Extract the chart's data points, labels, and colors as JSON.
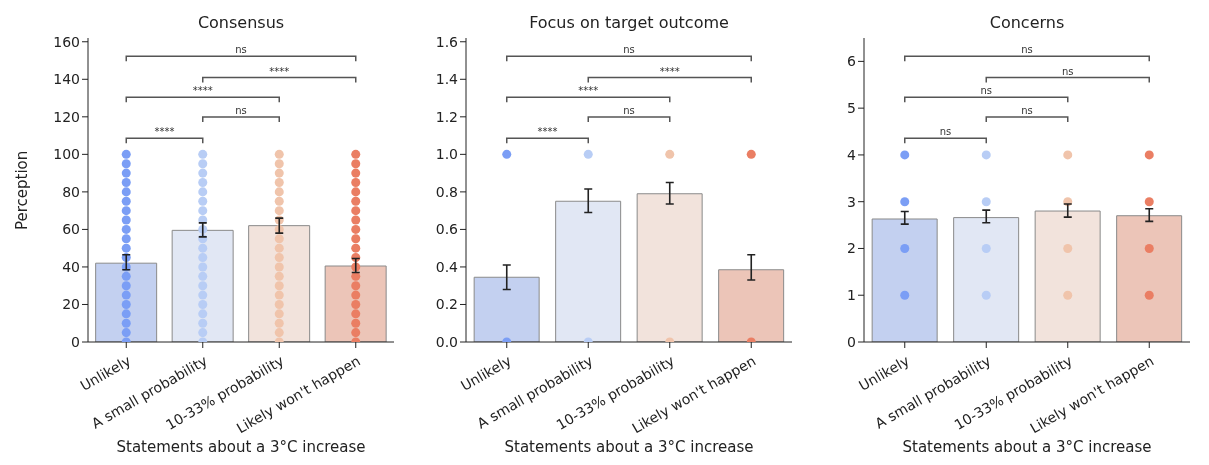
{
  "chart_data": [
    {
      "type": "bar",
      "title": "Consensus",
      "xlabel": "Statements about a 3°C increase",
      "ylabel": "Perception",
      "categories": [
        "Unlikely",
        "A small probability",
        "10-33% probability",
        "Likely won't happen"
      ],
      "ylim": [
        0,
        162
      ],
      "yticks": [
        0,
        20,
        40,
        60,
        80,
        100,
        120,
        140,
        160
      ],
      "grid": false,
      "legend": false,
      "series": [
        {
          "type": "bar",
          "values": [
            42,
            59.5,
            62,
            40.5
          ],
          "colors": [
            "#c3d0f0",
            "#e1e7f4",
            "#f2e3dc",
            "#ecc5b8"
          ],
          "errors": [
            [
              38.5,
              46.5
            ],
            [
              56,
              63.5
            ],
            [
              58,
              66
            ],
            [
              37,
              44.5
            ]
          ]
        },
        {
          "type": "scatter",
          "x": [
            "Unlikely",
            "Unlikely",
            "Unlikely",
            "Unlikely",
            "Unlikely",
            "Unlikely",
            "Unlikely",
            "Unlikely",
            "Unlikely",
            "Unlikely",
            "Unlikely",
            "Unlikely",
            "Unlikely",
            "Unlikely",
            "Unlikely",
            "Unlikely",
            "Unlikely",
            "Unlikely",
            "Unlikely",
            "Unlikely",
            "Unlikely",
            "A small probability",
            "A small probability",
            "A small probability",
            "A small probability",
            "A small probability",
            "A small probability",
            "A small probability",
            "A small probability",
            "A small probability",
            "A small probability",
            "A small probability",
            "A small probability",
            "A small probability",
            "A small probability",
            "A small probability",
            "A small probability",
            "A small probability",
            "A small probability",
            "A small probability",
            "A small probability",
            "A small probability",
            "10-33% probability",
            "10-33% probability",
            "10-33% probability",
            "10-33% probability",
            "10-33% probability",
            "10-33% probability",
            "10-33% probability",
            "10-33% probability",
            "10-33% probability",
            "10-33% probability",
            "10-33% probability",
            "10-33% probability",
            "10-33% probability",
            "10-33% probability",
            "10-33% probability",
            "10-33% probability",
            "10-33% probability",
            "10-33% probability",
            "10-33% probability",
            "10-33% probability",
            "10-33% probability",
            "Likely won't happen",
            "Likely won't happen",
            "Likely won't happen",
            "Likely won't happen",
            "Likely won't happen",
            "Likely won't happen",
            "Likely won't happen",
            "Likely won't happen",
            "Likely won't happen",
            "Likely won't happen",
            "Likely won't happen",
            "Likely won't happen",
            "Likely won't happen",
            "Likely won't happen",
            "Likely won't happen",
            "Likely won't happen",
            "Likely won't happen",
            "Likely won't happen",
            "Likely won't happen",
            "Likely won't happen",
            "Likely won't happen"
          ],
          "values": [
            0,
            5,
            10,
            15,
            20,
            25,
            30,
            35,
            40,
            45,
            50,
            55,
            60,
            65,
            70,
            75,
            80,
            85,
            90,
            95,
            100,
            0,
            5,
            10,
            15,
            20,
            25,
            30,
            35,
            40,
            45,
            50,
            55,
            60,
            65,
            70,
            75,
            80,
            85,
            90,
            95,
            100,
            0,
            5,
            10,
            15,
            20,
            25,
            30,
            35,
            40,
            45,
            50,
            55,
            60,
            65,
            70,
            75,
            80,
            85,
            90,
            95,
            100,
            0,
            5,
            10,
            15,
            20,
            25,
            30,
            35,
            40,
            45,
            50,
            55,
            60,
            65,
            70,
            75,
            80,
            85,
            90,
            95,
            100
          ],
          "colors": [
            "#7b9ef5",
            "#7b9ef5",
            "#7b9ef5",
            "#7b9ef5",
            "#7b9ef5",
            "#7b9ef5",
            "#7b9ef5",
            "#7b9ef5",
            "#7b9ef5",
            "#7b9ef5",
            "#7b9ef5",
            "#7b9ef5",
            "#7b9ef5",
            "#7b9ef5",
            "#7b9ef5",
            "#7b9ef5",
            "#7b9ef5",
            "#7b9ef5",
            "#7b9ef5",
            "#7b9ef5",
            "#7b9ef5",
            "#b8cdf5",
            "#b8cdf5",
            "#b8cdf5",
            "#b8cdf5",
            "#b8cdf5",
            "#b8cdf5",
            "#b8cdf5",
            "#b8cdf5",
            "#b8cdf5",
            "#b8cdf5",
            "#b8cdf5",
            "#b8cdf5",
            "#b8cdf5",
            "#b8cdf5",
            "#b8cdf5",
            "#b8cdf5",
            "#b8cdf5",
            "#b8cdf5",
            "#b8cdf5",
            "#b8cdf5",
            "#b8cdf5",
            "#f0c4ab",
            "#f0c4ab",
            "#f0c4ab",
            "#f0c4ab",
            "#f0c4ab",
            "#f0c4ab",
            "#f0c4ab",
            "#f0c4ab",
            "#f0c4ab",
            "#f0c4ab",
            "#f0c4ab",
            "#f0c4ab",
            "#f0c4ab",
            "#f0c4ab",
            "#f0c4ab",
            "#f0c4ab",
            "#f0c4ab",
            "#f0c4ab",
            "#f0c4ab",
            "#f0c4ab",
            "#f0c4ab",
            "#ea7e63",
            "#ea7e63",
            "#ea7e63",
            "#ea7e63",
            "#ea7e63",
            "#ea7e63",
            "#ea7e63",
            "#ea7e63",
            "#ea7e63",
            "#ea7e63",
            "#ea7e63",
            "#ea7e63",
            "#ea7e63",
            "#ea7e63",
            "#ea7e63",
            "#ea7e63",
            "#ea7e63",
            "#ea7e63",
            "#ea7e63",
            "#ea7e63",
            "#ea7e63"
          ]
        }
      ],
      "annotations": [
        "****",
        "ns",
        "****",
        "****",
        "ns"
      ]
    },
    {
      "type": "bar",
      "title": "Focus on target outcome",
      "xlabel": "Statements about a 3°C increase",
      "categories": [
        "Unlikely",
        "A small probability",
        "10-33% probability",
        "Likely won't happen"
      ],
      "ylim": [
        0,
        1.62
      ],
      "yticks": [
        {
          "value": 0,
          "label": "0.0"
        },
        0.2,
        0.4,
        0.6,
        0.8,
        {
          "value": 1,
          "label": "1.0"
        },
        1.2,
        1.4,
        1.6
      ],
      "grid": false,
      "legend": false,
      "series": [
        {
          "type": "bar",
          "values": [
            0.345,
            0.75,
            0.79,
            0.385
          ],
          "colors": [
            "#c3d0f0",
            "#e1e7f4",
            "#f2e3dc",
            "#ecc5b8"
          ],
          "errors": [
            [
              0.28,
              0.41
            ],
            [
              0.69,
              0.815
            ],
            [
              0.735,
              0.85
            ],
            [
              0.33,
              0.465
            ]
          ]
        },
        {
          "type": "scatter",
          "x": [
            "Unlikely",
            "Unlikely",
            "A small probability",
            "A small probability",
            "10-33% probability",
            "10-33% probability",
            "Likely won't happen",
            "Likely won't happen"
          ],
          "values": [
            0,
            1,
            0,
            1,
            0,
            1,
            0,
            1
          ],
          "colors": [
            "#7b9ef5",
            "#7b9ef5",
            "#b8cdf5",
            "#b8cdf5",
            "#f0c4ab",
            "#f0c4ab",
            "#ea7e63",
            "#ea7e63"
          ]
        }
      ],
      "annotations": [
        "****",
        "ns",
        "****",
        "****",
        "ns"
      ]
    },
    {
      "type": "bar",
      "title": "Concerns",
      "xlabel": "Statements about a 3°C increase",
      "categories": [
        "Unlikely",
        "A small probability",
        "10-33% probability",
        "Likely won't happen"
      ],
      "ylim": [
        0,
        6.5
      ],
      "yticks": [
        0,
        1,
        2,
        3,
        4,
        5,
        6
      ],
      "grid": false,
      "legend": false,
      "series": [
        {
          "type": "bar",
          "values": [
            2.63,
            2.66,
            2.8,
            2.7
          ],
          "colors": [
            "#c3d0f0",
            "#e1e7f4",
            "#f2e3dc",
            "#ecc5b8"
          ],
          "errors": [
            [
              2.52,
              2.79
            ],
            [
              2.55,
              2.82
            ],
            [
              2.67,
              2.95
            ],
            [
              2.58,
              2.85
            ]
          ]
        },
        {
          "type": "scatter",
          "x": [
            "Unlikely",
            "Unlikely",
            "Unlikely",
            "Unlikely",
            "A small probability",
            "A small probability",
            "A small probability",
            "A small probability",
            "10-33% probability",
            "10-33% probability",
            "10-33% probability",
            "10-33% probability",
            "Likely won't happen",
            "Likely won't happen",
            "Likely won't happen",
            "Likely won't happen"
          ],
          "values": [
            1,
            2,
            3,
            4,
            1,
            2,
            3,
            4,
            1,
            2,
            3,
            4,
            1,
            2,
            3,
            4
          ],
          "colors": [
            "#7b9ef5",
            "#7b9ef5",
            "#7b9ef5",
            "#7b9ef5",
            "#b8cdf5",
            "#b8cdf5",
            "#b8cdf5",
            "#b8cdf5",
            "#f0c4ab",
            "#f0c4ab",
            "#f0c4ab",
            "#f0c4ab",
            "#ea7e63",
            "#ea7e63",
            "#ea7e63",
            "#ea7e63"
          ]
        }
      ],
      "annotations": [
        "ns",
        "ns",
        "ns",
        "ns",
        "ns"
      ]
    }
  ]
}
